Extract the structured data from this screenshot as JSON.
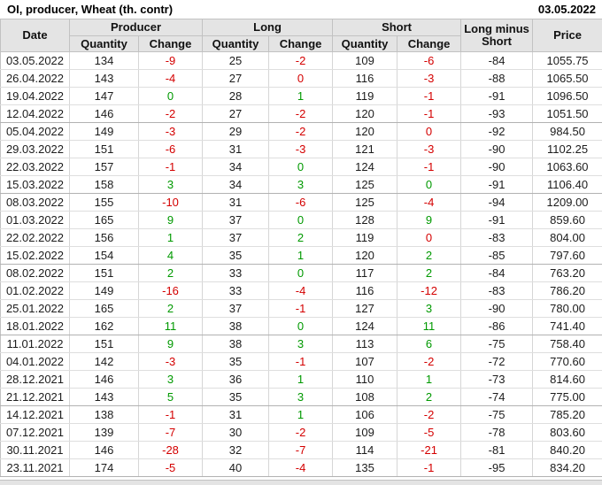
{
  "titlebar": {
    "title": "OI, producer, Wheat (th. contr)",
    "report_date": "03.05.2022"
  },
  "table": {
    "groups": [
      "Producer",
      "Long",
      "Short"
    ],
    "headers": {
      "date": "Date",
      "quantity": "Quantity",
      "change": "Change",
      "long_minus_short": "Long minus Short",
      "price": "Price"
    },
    "colors": {
      "negative": "#d40000",
      "positive": "#009900"
    },
    "rows": [
      {
        "date": "03.05.2022",
        "pq": "134",
        "pc": {
          "v": "-9",
          "s": "neg"
        },
        "lq": "25",
        "lc": {
          "v": "-2",
          "s": "neg"
        },
        "sq": "109",
        "sc": {
          "v": "-6",
          "s": "neg"
        },
        "lms": "-84",
        "price": "1055.75"
      },
      {
        "date": "26.04.2022",
        "pq": "143",
        "pc": {
          "v": "-4",
          "s": "neg"
        },
        "lq": "27",
        "lc": {
          "v": "0",
          "s": "neg"
        },
        "sq": "116",
        "sc": {
          "v": "-3",
          "s": "neg"
        },
        "lms": "-88",
        "price": "1065.50"
      },
      {
        "date": "19.04.2022",
        "pq": "147",
        "pc": {
          "v": "0",
          "s": "pos"
        },
        "lq": "28",
        "lc": {
          "v": "1",
          "s": "pos"
        },
        "sq": "119",
        "sc": {
          "v": "-1",
          "s": "neg"
        },
        "lms": "-91",
        "price": "1096.50"
      },
      {
        "date": "12.04.2022",
        "pq": "146",
        "pc": {
          "v": "-2",
          "s": "neg"
        },
        "lq": "27",
        "lc": {
          "v": "-2",
          "s": "neg"
        },
        "sq": "120",
        "sc": {
          "v": "-1",
          "s": "neg"
        },
        "lms": "-93",
        "price": "1051.50"
      },
      {
        "date": "05.04.2022",
        "pq": "149",
        "pc": {
          "v": "-3",
          "s": "neg"
        },
        "lq": "29",
        "lc": {
          "v": "-2",
          "s": "neg"
        },
        "sq": "120",
        "sc": {
          "v": "0",
          "s": "neg"
        },
        "lms": "-92",
        "price": "984.50"
      },
      {
        "date": "29.03.2022",
        "pq": "151",
        "pc": {
          "v": "-6",
          "s": "neg"
        },
        "lq": "31",
        "lc": {
          "v": "-3",
          "s": "neg"
        },
        "sq": "121",
        "sc": {
          "v": "-3",
          "s": "neg"
        },
        "lms": "-90",
        "price": "1102.25"
      },
      {
        "date": "22.03.2022",
        "pq": "157",
        "pc": {
          "v": "-1",
          "s": "neg"
        },
        "lq": "34",
        "lc": {
          "v": "0",
          "s": "pos"
        },
        "sq": "124",
        "sc": {
          "v": "-1",
          "s": "neg"
        },
        "lms": "-90",
        "price": "1063.60"
      },
      {
        "date": "15.03.2022",
        "pq": "158",
        "pc": {
          "v": "3",
          "s": "pos"
        },
        "lq": "34",
        "lc": {
          "v": "3",
          "s": "pos"
        },
        "sq": "125",
        "sc": {
          "v": "0",
          "s": "pos"
        },
        "lms": "-91",
        "price": "1106.40"
      },
      {
        "date": "08.03.2022",
        "pq": "155",
        "pc": {
          "v": "-10",
          "s": "neg"
        },
        "lq": "31",
        "lc": {
          "v": "-6",
          "s": "neg"
        },
        "sq": "125",
        "sc": {
          "v": "-4",
          "s": "neg"
        },
        "lms": "-94",
        "price": "1209.00"
      },
      {
        "date": "01.03.2022",
        "pq": "165",
        "pc": {
          "v": "9",
          "s": "pos"
        },
        "lq": "37",
        "lc": {
          "v": "0",
          "s": "pos"
        },
        "sq": "128",
        "sc": {
          "v": "9",
          "s": "pos"
        },
        "lms": "-91",
        "price": "859.60"
      },
      {
        "date": "22.02.2022",
        "pq": "156",
        "pc": {
          "v": "1",
          "s": "pos"
        },
        "lq": "37",
        "lc": {
          "v": "2",
          "s": "pos"
        },
        "sq": "119",
        "sc": {
          "v": "0",
          "s": "neg"
        },
        "lms": "-83",
        "price": "804.00"
      },
      {
        "date": "15.02.2022",
        "pq": "154",
        "pc": {
          "v": "4",
          "s": "pos"
        },
        "lq": "35",
        "lc": {
          "v": "1",
          "s": "pos"
        },
        "sq": "120",
        "sc": {
          "v": "2",
          "s": "pos"
        },
        "lms": "-85",
        "price": "797.60"
      },
      {
        "date": "08.02.2022",
        "pq": "151",
        "pc": {
          "v": "2",
          "s": "pos"
        },
        "lq": "33",
        "lc": {
          "v": "0",
          "s": "pos"
        },
        "sq": "117",
        "sc": {
          "v": "2",
          "s": "pos"
        },
        "lms": "-84",
        "price": "763.20"
      },
      {
        "date": "01.02.2022",
        "pq": "149",
        "pc": {
          "v": "-16",
          "s": "neg"
        },
        "lq": "33",
        "lc": {
          "v": "-4",
          "s": "neg"
        },
        "sq": "116",
        "sc": {
          "v": "-12",
          "s": "neg"
        },
        "lms": "-83",
        "price": "786.20"
      },
      {
        "date": "25.01.2022",
        "pq": "165",
        "pc": {
          "v": "2",
          "s": "pos"
        },
        "lq": "37",
        "lc": {
          "v": "-1",
          "s": "neg"
        },
        "sq": "127",
        "sc": {
          "v": "3",
          "s": "pos"
        },
        "lms": "-90",
        "price": "780.00"
      },
      {
        "date": "18.01.2022",
        "pq": "162",
        "pc": {
          "v": "11",
          "s": "pos"
        },
        "lq": "38",
        "lc": {
          "v": "0",
          "s": "pos"
        },
        "sq": "124",
        "sc": {
          "v": "11",
          "s": "pos"
        },
        "lms": "-86",
        "price": "741.40"
      },
      {
        "date": "11.01.2022",
        "pq": "151",
        "pc": {
          "v": "9",
          "s": "pos"
        },
        "lq": "38",
        "lc": {
          "v": "3",
          "s": "pos"
        },
        "sq": "113",
        "sc": {
          "v": "6",
          "s": "pos"
        },
        "lms": "-75",
        "price": "758.40"
      },
      {
        "date": "04.01.2022",
        "pq": "142",
        "pc": {
          "v": "-3",
          "s": "neg"
        },
        "lq": "35",
        "lc": {
          "v": "-1",
          "s": "neg"
        },
        "sq": "107",
        "sc": {
          "v": "-2",
          "s": "neg"
        },
        "lms": "-72",
        "price": "770.60"
      },
      {
        "date": "28.12.2021",
        "pq": "146",
        "pc": {
          "v": "3",
          "s": "pos"
        },
        "lq": "36",
        "lc": {
          "v": "1",
          "s": "pos"
        },
        "sq": "110",
        "sc": {
          "v": "1",
          "s": "pos"
        },
        "lms": "-73",
        "price": "814.60"
      },
      {
        "date": "21.12.2021",
        "pq": "143",
        "pc": {
          "v": "5",
          "s": "pos"
        },
        "lq": "35",
        "lc": {
          "v": "3",
          "s": "pos"
        },
        "sq": "108",
        "sc": {
          "v": "2",
          "s": "pos"
        },
        "lms": "-74",
        "price": "775.00"
      },
      {
        "date": "14.12.2021",
        "pq": "138",
        "pc": {
          "v": "-1",
          "s": "neg"
        },
        "lq": "31",
        "lc": {
          "v": "1",
          "s": "pos"
        },
        "sq": "106",
        "sc": {
          "v": "-2",
          "s": "neg"
        },
        "lms": "-75",
        "price": "785.20"
      },
      {
        "date": "07.12.2021",
        "pq": "139",
        "pc": {
          "v": "-7",
          "s": "neg"
        },
        "lq": "30",
        "lc": {
          "v": "-2",
          "s": "neg"
        },
        "sq": "109",
        "sc": {
          "v": "-5",
          "s": "neg"
        },
        "lms": "-78",
        "price": "803.60"
      },
      {
        "date": "30.11.2021",
        "pq": "146",
        "pc": {
          "v": "-28",
          "s": "neg"
        },
        "lq": "32",
        "lc": {
          "v": "-7",
          "s": "neg"
        },
        "sq": "114",
        "sc": {
          "v": "-21",
          "s": "neg"
        },
        "lms": "-81",
        "price": "840.20"
      },
      {
        "date": "23.11.2021",
        "pq": "174",
        "pc": {
          "v": "-5",
          "s": "neg"
        },
        "lq": "40",
        "lc": {
          "v": "-4",
          "s": "neg"
        },
        "sq": "135",
        "sc": {
          "v": "-1",
          "s": "neg"
        },
        "lms": "-95",
        "price": "834.20"
      }
    ]
  }
}
